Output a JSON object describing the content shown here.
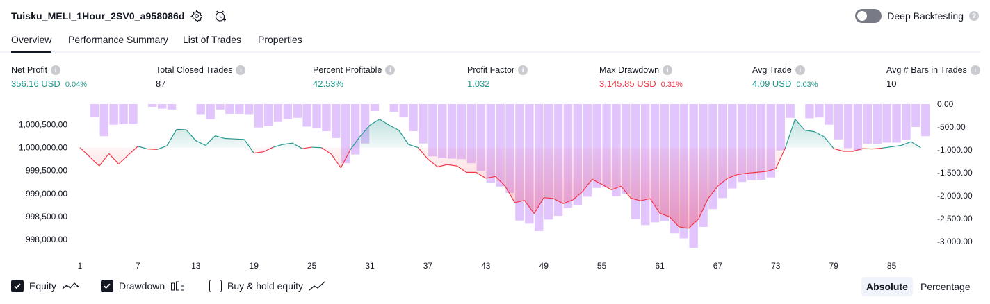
{
  "header": {
    "strategy_title": "Tuisku_MELI_1Hour_2SV0_a958086d",
    "settings_icon": "gear-icon",
    "alert_icon": "alarm-clock-plus-icon",
    "deep_backtesting_label": "Deep Backtesting",
    "deep_backtesting_enabled": false
  },
  "tabs": [
    {
      "label": "Overview",
      "active": true
    },
    {
      "label": "Performance Summary",
      "active": false
    },
    {
      "label": "List of Trades",
      "active": false
    },
    {
      "label": "Properties",
      "active": false
    }
  ],
  "metrics": [
    {
      "label": "Net Profit",
      "value": "356.16 USD",
      "pct": "0.04%",
      "color": "#22998e"
    },
    {
      "label": "Total Closed Trades",
      "value": "87",
      "pct": "",
      "color": "#131722"
    },
    {
      "label": "Percent Profitable",
      "value": "42.53%",
      "pct": "",
      "color": "#22998e"
    },
    {
      "label": "Profit Factor",
      "value": "1.032",
      "pct": "",
      "color": "#22998e"
    },
    {
      "label": "Max Drawdown",
      "value": "3,145.85 USD",
      "pct": "0.31%",
      "color": "#f23645"
    },
    {
      "label": "Avg Trade",
      "value": "4.09 USD",
      "pct": "0.03%",
      "color": "#22998e"
    },
    {
      "label": "Avg # Bars in Trades",
      "value": "10",
      "pct": "",
      "color": "#131722"
    }
  ],
  "chart_data": {
    "type": "line",
    "x_ticks": [
      "1",
      "7",
      "13",
      "19",
      "25",
      "31",
      "37",
      "43",
      "49",
      "55",
      "61",
      "67",
      "73",
      "79",
      "85"
    ],
    "left_axis_ticks": [
      "1,000,500.00",
      "1,000,000.00",
      "999,500.00",
      "999,000.00",
      "998,500.00",
      "998,000.00"
    ],
    "right_axis_ticks": [
      "0.00",
      "-500.00",
      "-1,000.00",
      "-1,500.00",
      "-2,000.00",
      "-2,500.00",
      "-3,000.00"
    ],
    "baseline": 1000000,
    "equity_ylim": [
      997800,
      1000950
    ],
    "drawdown_ylim": [
      -3150,
      0
    ],
    "series": [
      {
        "key": "equity",
        "x": [
          1,
          2,
          3,
          4,
          5,
          6,
          7,
          8,
          9,
          10,
          11,
          12,
          13,
          14,
          15,
          16,
          17,
          18,
          19,
          20,
          21,
          22,
          23,
          24,
          25,
          26,
          27,
          28,
          29,
          30,
          31,
          32,
          33,
          34,
          35,
          36,
          37,
          38,
          39,
          40,
          41,
          42,
          43,
          44,
          45,
          46,
          47,
          48,
          49,
          50,
          51,
          52,
          53,
          54,
          55,
          56,
          57,
          58,
          59,
          60,
          61,
          62,
          63,
          64,
          65,
          66,
          67,
          68,
          69,
          70,
          71,
          72,
          73,
          74,
          75,
          76,
          77,
          78,
          79,
          80,
          81,
          82,
          83,
          84,
          85,
          86,
          87,
          88
        ],
        "values": [
          1000000,
          999800,
          999600,
          999870,
          999640,
          999840,
          1000030,
          999970,
          999960,
          1000040,
          1000400,
          1000390,
          1000150,
          1000050,
          1000260,
          1000200,
          1000190,
          1000180,
          999880,
          999910,
          1000010,
          1000070,
          1000100,
          999980,
          1000010,
          1000000,
          999860,
          999560,
          999960,
          1000250,
          1000490,
          1000620,
          1000490,
          1000380,
          1000070,
          1000000,
          999750,
          999580,
          999630,
          999600,
          999460,
          999460,
          999330,
          999370,
          999160,
          998800,
          998850,
          998560,
          998910,
          998890,
          998780,
          998860,
          999040,
          999310,
          999200,
          999080,
          999160,
          998900,
          998840,
          998890,
          998570,
          998490,
          998270,
          998240,
          998440,
          998890,
          999160,
          999330,
          999410,
          999440,
          999460,
          999480,
          999540,
          1000000,
          1000620,
          1000380,
          1000350,
          1000240,
          999980,
          999920,
          999920,
          999980,
          999970,
          999990,
          1000020,
          1000050,
          1000130,
          1000000
        ],
        "color": "#22998e"
      },
      {
        "key": "drawdown",
        "x": [
          1,
          2,
          3,
          4,
          5,
          6,
          7,
          8,
          9,
          10,
          11,
          12,
          13,
          14,
          15,
          16,
          17,
          18,
          19,
          20,
          21,
          22,
          23,
          24,
          25,
          26,
          27,
          28,
          29,
          30,
          31,
          32,
          33,
          34,
          35,
          36,
          37,
          38,
          39,
          40,
          41,
          42,
          43,
          44,
          45,
          46,
          47,
          48,
          49,
          50,
          51,
          52,
          53,
          54,
          55,
          56,
          57,
          58,
          59,
          60,
          61,
          62,
          63,
          64,
          65,
          66,
          67,
          68,
          69,
          70,
          71,
          72,
          73,
          74,
          75,
          76,
          77,
          78,
          79,
          80,
          81,
          82,
          83,
          84,
          85,
          86,
          87,
          88
        ],
        "values": [
          0,
          -280,
          -700,
          -450,
          -440,
          -440,
          0,
          -60,
          -100,
          -120,
          0,
          0,
          -220,
          -330,
          -120,
          -210,
          -210,
          -220,
          -510,
          -480,
          -390,
          -330,
          -300,
          -490,
          -530,
          -590,
          -740,
          -1290,
          -1100,
          -860,
          -150,
          0,
          -170,
          -280,
          -590,
          -860,
          -1140,
          -1180,
          -1190,
          -1200,
          -1290,
          -1460,
          -1720,
          -1800,
          -1940,
          -2540,
          -2610,
          -2770,
          -2520,
          -2440,
          -2270,
          -2210,
          -2020,
          -1830,
          -1820,
          -2010,
          -1960,
          -2510,
          -2640,
          -2580,
          -2550,
          -2820,
          -2930,
          -3140,
          -2680,
          -2290,
          -2050,
          -1840,
          -1700,
          -1660,
          -1650,
          -1600,
          -1010,
          -300,
          0,
          -310,
          -290,
          -450,
          -770,
          -960,
          -1010,
          -870,
          -870,
          -840,
          -840,
          -780,
          -500,
          -700
        ],
        "color": "#b266f9"
      }
    ]
  },
  "footer": {
    "checkboxes": [
      {
        "label": "Equity",
        "checked": true,
        "icon": "equity-line-icon"
      },
      {
        "label": "Drawdown",
        "checked": true,
        "icon": "drawdown-bars-icon"
      },
      {
        "label": "Buy & hold equity",
        "checked": false,
        "icon": "buy-hold-line-icon"
      }
    ],
    "mode_absolute": "Absolute",
    "mode_percentage": "Percentage"
  }
}
